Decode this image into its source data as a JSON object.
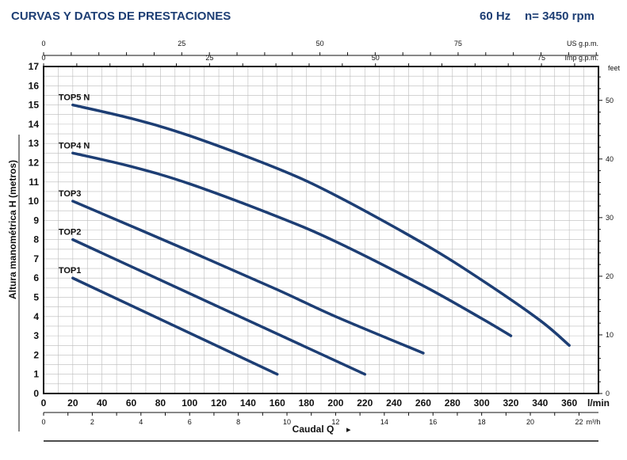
{
  "header": {
    "title": "CURVAS Y DATOS DE PRESTACIONES",
    "freq": "60 Hz",
    "speed": "n= 3450 rpm"
  },
  "chart_data": {
    "type": "line",
    "title": "CURVAS Y DATOS DE PRESTACIONES",
    "xlabel": "Caudal Q",
    "ylabel": "Altura manométrica H (metros)",
    "x_unit": "l/min",
    "xlim": [
      0,
      380
    ],
    "ylim": [
      0,
      17
    ],
    "x_ticks": [
      0,
      20,
      40,
      60,
      80,
      100,
      120,
      140,
      160,
      180,
      200,
      220,
      240,
      260,
      280,
      300,
      320,
      340,
      360
    ],
    "y_ticks": [
      0,
      1,
      2,
      3,
      4,
      5,
      6,
      7,
      8,
      9,
      10,
      11,
      12,
      13,
      14,
      15,
      16,
      17
    ],
    "secondary_axes": {
      "us_gpm": {
        "label": "US g.p.m.",
        "ticks": [
          0,
          25,
          50,
          75
        ]
      },
      "imp_gpm": {
        "label": "Imp g.p.m.",
        "ticks": [
          0,
          25,
          50,
          75
        ]
      },
      "m3h": {
        "label": "m³/h",
        "ticks": [
          0,
          2,
          4,
          6,
          8,
          10,
          12,
          14,
          16,
          18,
          20,
          22
        ]
      },
      "feet": {
        "label": "feet",
        "ticks": [
          0,
          10,
          20,
          30,
          40,
          50
        ]
      }
    },
    "grid": true,
    "series": [
      {
        "name": "TOP1",
        "x": [
          20,
          160
        ],
        "y": [
          6,
          1
        ]
      },
      {
        "name": "TOP2",
        "x": [
          20,
          220
        ],
        "y": [
          8,
          1
        ]
      },
      {
        "name": "TOP3",
        "x": [
          20,
          100,
          160,
          200,
          260
        ],
        "y": [
          10,
          7.4,
          5.4,
          4.0,
          2.1
        ]
      },
      {
        "name": "TOP4 N",
        "x": [
          20,
          60,
          100,
          160,
          200,
          260,
          300,
          320
        ],
        "y": [
          12.5,
          11.8,
          10.9,
          9.2,
          7.9,
          5.6,
          3.9,
          3.0
        ]
      },
      {
        "name": "TOP5 N",
        "x": [
          20,
          60,
          100,
          160,
          200,
          260,
          300,
          340,
          360
        ],
        "y": [
          15,
          14.3,
          13.4,
          11.7,
          10.3,
          7.8,
          5.9,
          3.8,
          2.5
        ]
      }
    ],
    "line_color": "#1d3e74",
    "caudal_arrow": "▸",
    "l_min": "l/min"
  }
}
